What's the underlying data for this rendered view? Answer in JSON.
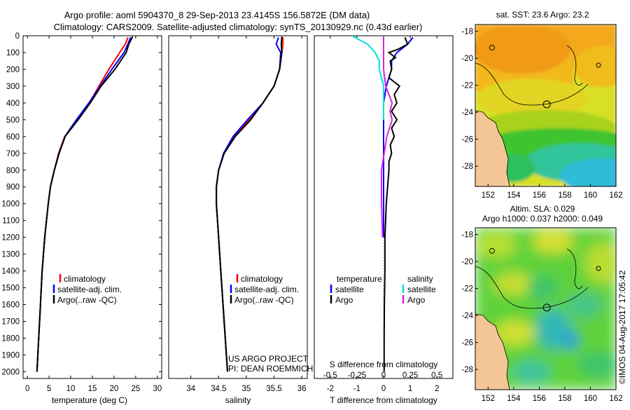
{
  "header": {
    "line1": "Argo profile: aoml 5904370_8 29-Sep-2013 23.4145S 156.5872E (DM data)",
    "line2": "Climatology: CARS2009. Satellite-adjusted climatology: synTS_20130929.nc (0.43d earlier)"
  },
  "colors": {
    "climatology": "#ff0000",
    "satellite": "#0000ff",
    "argo": "#000000",
    "sal_satellite": "#00e0e0",
    "sal_argo": "#e020e0"
  },
  "y_axis": {
    "ticks": [
      "0",
      "100",
      "200",
      "300",
      "400",
      "500",
      "600",
      "700",
      "800",
      "900",
      "1000",
      "1100",
      "1200",
      "1300",
      "1400",
      "1500",
      "1600",
      "1700",
      "1800",
      "1900",
      "2000"
    ]
  },
  "chart_data": [
    {
      "type": "line",
      "id": "temperature",
      "xlabel": "temperature (deg C)",
      "xlim": [
        -1,
        31
      ],
      "ylim": [
        0,
        2040
      ],
      "y_inverted": true,
      "x_ticks": [
        "0",
        "5",
        "10",
        "15",
        "20",
        "25",
        "30"
      ],
      "series": [
        {
          "name": "climatology",
          "depth": [
            10,
            50,
            100,
            200,
            300,
            400,
            500,
            560,
            600,
            700,
            800,
            900,
            1000,
            1200,
            1400,
            1600,
            1800,
            2000
          ],
          "values": [
            23.2,
            22.6,
            21.3,
            18.8,
            16.5,
            14.3,
            11.5,
            9.8,
            8.6,
            7.2,
            6.2,
            5.3,
            4.8,
            4.0,
            3.4,
            3.0,
            2.6,
            2.2
          ]
        },
        {
          "name": "satellite-adj. clim.",
          "depth": [
            10,
            50,
            100,
            200,
            300,
            400,
            500,
            560,
            600,
            700,
            800,
            900,
            1000,
            1200,
            1400,
            1600,
            1800,
            2000
          ],
          "values": [
            23.8,
            23.2,
            22.3,
            19.5,
            16.8,
            14.2,
            11.3,
            9.7,
            8.7,
            7.3,
            6.2,
            5.3,
            4.8,
            4.0,
            3.4,
            3.0,
            2.6,
            2.2
          ]
        },
        {
          "name": "Argo(..raw -QC)",
          "depth": [
            5,
            50,
            100,
            200,
            300,
            400,
            500,
            560,
            600,
            700,
            800,
            900,
            1000,
            1200,
            1400,
            1600,
            1800,
            2000
          ],
          "values": [
            24.3,
            23.4,
            22.8,
            20.2,
            17.0,
            14.5,
            11.7,
            9.9,
            8.7,
            7.3,
            6.2,
            5.3,
            4.8,
            4.0,
            3.4,
            3.0,
            2.6,
            2.2
          ]
        }
      ],
      "legend": [
        "climatology",
        "satellite-adj. clim.",
        "Argo(..raw -QC)"
      ]
    },
    {
      "type": "line",
      "id": "salinity",
      "xlabel": "salinity",
      "xlim": [
        33.6,
        36.1
      ],
      "ylim": [
        0,
        2040
      ],
      "y_inverted": true,
      "x_ticks": [
        "34",
        "34.5",
        "35",
        "35.5",
        "36"
      ],
      "series": [
        {
          "name": "climatology",
          "depth": [
            10,
            50,
            100,
            200,
            300,
            400,
            500,
            600,
            700,
            800,
            900,
            1000,
            1200,
            1400,
            1600,
            1800,
            2000
          ],
          "values": [
            35.66,
            35.66,
            35.64,
            35.6,
            35.5,
            35.3,
            35.05,
            34.78,
            34.6,
            34.5,
            34.46,
            34.46,
            34.5,
            34.54,
            34.58,
            34.62,
            34.66
          ]
        },
        {
          "name": "satellite-adj. clim.",
          "depth": [
            10,
            50,
            100,
            200,
            300,
            400,
            500,
            600,
            700,
            800,
            900,
            1000,
            1200,
            1400,
            1600,
            1800,
            2000
          ],
          "values": [
            35.58,
            35.54,
            35.62,
            35.6,
            35.5,
            35.3,
            35.02,
            34.76,
            34.59,
            34.5,
            34.46,
            34.46,
            34.5,
            34.54,
            34.58,
            34.62,
            34.66
          ]
        },
        {
          "name": "Argo(..raw -QC)",
          "depth": [
            5,
            50,
            100,
            200,
            300,
            400,
            500,
            600,
            700,
            800,
            900,
            1000,
            1200,
            1400,
            1600,
            1800,
            2000
          ],
          "values": [
            35.64,
            35.63,
            35.64,
            35.6,
            35.5,
            35.3,
            35.08,
            34.8,
            34.6,
            34.5,
            34.46,
            34.46,
            34.5,
            34.54,
            34.58,
            34.62,
            34.66
          ]
        }
      ],
      "legend": [
        "climatology",
        "satellite-adj. clim.",
        "Argo(..raw -QC)"
      ],
      "annotation": [
        "US ARGO PROJECT",
        "PI: DEAN ROEMMICH"
      ]
    },
    {
      "type": "line",
      "id": "difference",
      "xlabel": "T difference from climatology",
      "x2label": "S difference from climatology",
      "xlim": [
        -2.6,
        2.6
      ],
      "ylim": [
        0,
        2040
      ],
      "y_inverted": true,
      "x_ticks": [
        "-2",
        "-1",
        "0",
        "1",
        "2"
      ],
      "x2_ticks": [
        "-0.5",
        "-0.25",
        "0",
        "0.25",
        "0.5"
      ],
      "series": [
        {
          "name": "temperature satellite",
          "depth": [
            10,
            50,
            100,
            150,
            200,
            250,
            300,
            350,
            400,
            500,
            600,
            700,
            800,
            1000,
            1200
          ],
          "values": [
            1.1,
            0.9,
            0.5,
            0.3,
            0.3,
            0.2,
            0.1,
            0.05,
            0.0,
            0.0,
            0.0,
            0.0,
            0.0,
            0.0,
            0.0
          ]
        },
        {
          "name": "temperature Argo",
          "depth": [
            10,
            50,
            80,
            100,
            130,
            150,
            200,
            250,
            300,
            350,
            400,
            450,
            500,
            550,
            600,
            650,
            700,
            750,
            800,
            900,
            1000,
            1200,
            1400,
            1600,
            1800,
            2000
          ],
          "values": [
            0.8,
            0.9,
            0.55,
            0.2,
            0.45,
            0.25,
            0.3,
            0.2,
            0.6,
            0.4,
            0.5,
            0.3,
            0.5,
            0.3,
            0.4,
            0.25,
            0.3,
            0.2,
            0.2,
            0.15,
            0.1,
            0.05,
            0.05,
            0.03,
            0.02,
            0.02
          ]
        },
        {
          "name": "salinity satellite",
          "depth": [
            0,
            50,
            100,
            150,
            200,
            250,
            300,
            350,
            400,
            500
          ],
          "values": [
            -0.3,
            -0.15,
            -0.08,
            -0.04,
            -0.04,
            -0.02,
            0.0,
            0.0,
            0.0,
            0.0
          ]
        },
        {
          "name": "salinity Argo",
          "depth": [
            10,
            100,
            200,
            300,
            350,
            400,
            450,
            500,
            600,
            800,
            1000,
            1200
          ],
          "values": [
            0.0,
            0.0,
            0.0,
            0.02,
            0.05,
            0.08,
            0.06,
            0.08,
            0.03,
            -0.02,
            -0.02,
            -0.01
          ]
        }
      ],
      "legend_titles": [
        "temperature",
        "salinity"
      ],
      "legend_temperature": [
        "satellite",
        "Argo"
      ],
      "legend_salinity": [
        "satellite",
        "Argo"
      ]
    },
    {
      "type": "heatmap",
      "id": "sst-map",
      "title": "sat. SST: 23.6  Argo: 23.2",
      "xlim": [
        151,
        162
      ],
      "ylim": [
        -29.5,
        -17.5
      ],
      "x_ticks": [
        "152",
        "154",
        "156",
        "158",
        "160",
        "162"
      ],
      "y_ticks": [
        "-18",
        "-20",
        "-22",
        "-24",
        "-26",
        "-28"
      ],
      "float_position": [
        156.5872,
        -23.4145
      ]
    },
    {
      "type": "heatmap",
      "id": "sla-map",
      "title": "Altim. SLA: 0.029",
      "subtitle": "Argo h1000: 0.037  h2000: 0.049",
      "xlim": [
        151,
        162
      ],
      "ylim": [
        -29.5,
        -17.5
      ],
      "x_ticks": [
        "152",
        "154",
        "156",
        "158",
        "160",
        "162"
      ],
      "y_ticks": [
        "-18",
        "-20",
        "-22",
        "-24",
        "-26",
        "-28"
      ],
      "float_position": [
        156.5872,
        -23.4145
      ]
    }
  ],
  "footer": {
    "imos_stamp": "©IMOS 04-Aug-2017 17:05:42"
  }
}
